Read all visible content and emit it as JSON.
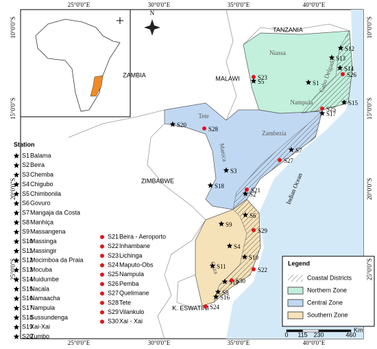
{
  "graticule": {
    "lon": [
      "25°0'0\"E",
      "30°0'0\"E",
      "35°0'0\"E",
      "40°0'0\"E"
    ],
    "lat": [
      "10°0'0\"S",
      "15°0'0\"S",
      "20°0'0\"S",
      "25°0'0\"S"
    ]
  },
  "north": "N",
  "countries": [
    "TANZANIA",
    "MALAWI",
    "ZAMBIA",
    "ZIMBABWE",
    "K. ESWATINI"
  ],
  "ocean": "Indian Ocean",
  "provinces": [
    "Niassa",
    "Cabo Delgado",
    "Nampula",
    "Zambezia",
    "Tete",
    "Manica",
    "Gaza"
  ],
  "station_list": {
    "title": "Station",
    "items": [
      {
        "code": "S1",
        "name": "Balama"
      },
      {
        "code": "S2",
        "name": "Beira"
      },
      {
        "code": "S3",
        "name": "Chemba"
      },
      {
        "code": "S4",
        "name": "Chigubo"
      },
      {
        "code": "S5",
        "name": "Chimbonila"
      },
      {
        "code": "S6",
        "name": "Govuro"
      },
      {
        "code": "S7",
        "name": "Mangaja da Costa"
      },
      {
        "code": "S8",
        "name": "Manhiça"
      },
      {
        "code": "S9",
        "name": "Massangena"
      },
      {
        "code": "S10",
        "name": "Massinga"
      },
      {
        "code": "S11",
        "name": "Massingir"
      },
      {
        "code": "S12",
        "name": "Mocimboa da Praia"
      },
      {
        "code": "S13",
        "name": "Mocuba"
      },
      {
        "code": "S14",
        "name": "Muidumbe"
      },
      {
        "code": "S15",
        "name": "Nacala"
      },
      {
        "code": "S16",
        "name": "Namaacha"
      },
      {
        "code": "S17",
        "name": "Nampula"
      },
      {
        "code": "S18",
        "name": "Sussundenga"
      },
      {
        "code": "S19",
        "name": "Xai-Xai"
      },
      {
        "code": "S20",
        "name": "Zumbo"
      },
      {
        "code": "S21",
        "name": "Beira - Aeroporto"
      },
      {
        "code": "S22",
        "name": "Inhambane"
      },
      {
        "code": "S23",
        "name": "Lichinga"
      },
      {
        "code": "S24",
        "name": "Maputo-Obs"
      },
      {
        "code": "S25",
        "name": "Nampula"
      },
      {
        "code": "S26",
        "name": "Pemba"
      },
      {
        "code": "S27",
        "name": "Quelimane"
      },
      {
        "code": "S28",
        "name": "Tete"
      },
      {
        "code": "S29",
        "name": "Vilankulo"
      },
      {
        "code": "S30",
        "name": "Xai - Xai"
      }
    ]
  },
  "legend": {
    "title": "Legend",
    "items": [
      "Coastal Districts",
      "Northern Zone",
      "Central Zone",
      "Southern Zone"
    ]
  },
  "scale": {
    "ticks": [
      0,
      115,
      230,
      460
    ],
    "unit": "Km"
  }
}
